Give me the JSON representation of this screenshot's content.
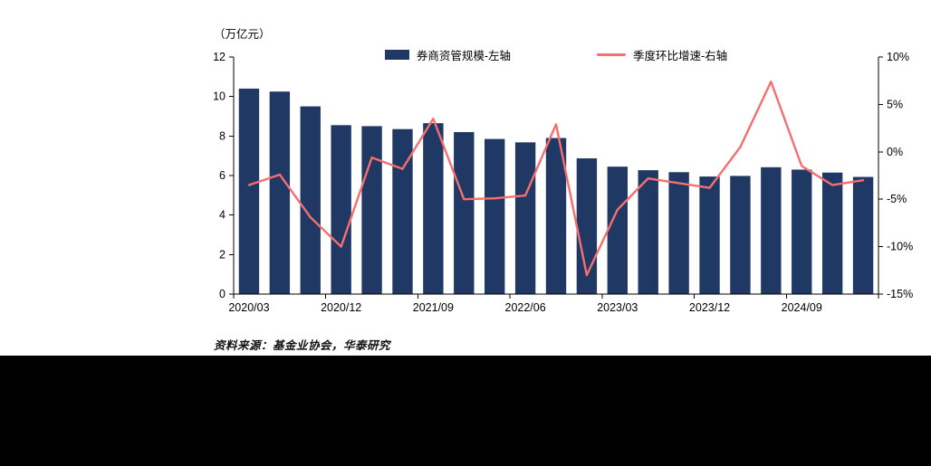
{
  "unit_label": "（万亿元）",
  "legend": {
    "bar_label": "券商资管规模-左轴",
    "line_label": "季度环比增速-右轴"
  },
  "source_note": "资料来源：基金业协会，华泰研究",
  "colors": {
    "bar": "#1f3864",
    "line": "#f66e6e",
    "axis": "#000000",
    "text": "#000000",
    "footer": "#000000"
  },
  "chart_data": {
    "type": "bar",
    "title": "",
    "categories": [
      "2020/03",
      "2020/06",
      "2020/09",
      "2020/12",
      "2021/03",
      "2021/06",
      "2021/09",
      "2021/12",
      "2022/03",
      "2022/06",
      "2022/09",
      "2022/12",
      "2023/03",
      "2023/06",
      "2023/09",
      "2023/12",
      "2024/03",
      "2024/06",
      "2024/09",
      "2024/12",
      "2025/03"
    ],
    "x_tick_labels": [
      "2020/03",
      "2020/12",
      "2021/09",
      "2022/06",
      "2023/03",
      "2023/12",
      "2024/09"
    ],
    "x_tick_label_indices": [
      0,
      3,
      6,
      9,
      12,
      15,
      18
    ],
    "series": [
      {
        "name": "券商资管规模-左轴",
        "type": "bar",
        "axis": "left",
        "values": [
          10.4,
          10.25,
          9.5,
          8.55,
          8.5,
          8.35,
          8.65,
          8.2,
          7.85,
          7.68,
          7.9,
          6.87,
          6.45,
          6.27,
          6.17,
          5.95,
          5.98,
          6.42,
          6.3,
          6.15,
          5.93
        ]
      },
      {
        "name": "季度环比增速-右轴",
        "type": "line",
        "axis": "right",
        "values": [
          -3.5,
          -2.4,
          -6.9,
          -10.0,
          -0.6,
          -1.8,
          3.5,
          -5.0,
          -4.9,
          -4.6,
          2.9,
          -13.0,
          -6.1,
          -2.8,
          -3.3,
          -3.8,
          0.5,
          7.4,
          -1.5,
          -3.5,
          -3.0
        ]
      }
    ],
    "left_axis": {
      "label": "（万亿元）",
      "min": 0,
      "max": 12,
      "ticks": [
        0,
        2,
        4,
        6,
        8,
        10,
        12
      ]
    },
    "right_axis": {
      "min": -15,
      "max": 10,
      "ticks": [
        -15,
        -10,
        -5,
        0,
        5,
        10
      ],
      "suffix": "%"
    },
    "grid": false,
    "legend_position": "top"
  }
}
